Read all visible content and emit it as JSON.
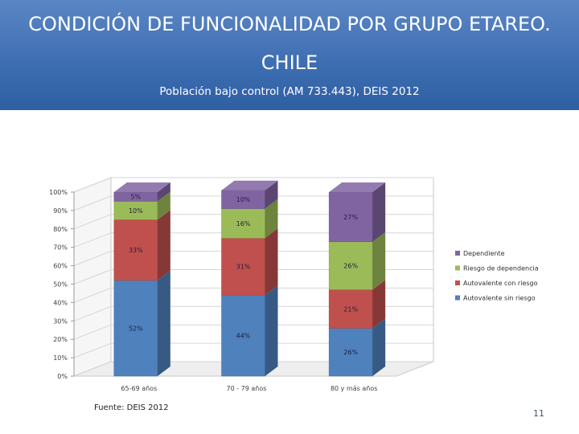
{
  "slide": {
    "title_line1": "CONDICIÓN DE FUNCIONALIDAD POR GRUPO ETAREO.",
    "title_line2": "CHILE",
    "subtitle": "Población bajo control (AM 733.443), DEIS 2012",
    "source": "Fuente: DEIS 2012",
    "page_number": "11"
  },
  "colors": {
    "banner": "#3f6fb3",
    "series": [
      "#4f81bd",
      "#c0504d",
      "#9bbb59",
      "#8064a2"
    ]
  },
  "chart_data": {
    "type": "bar",
    "stacked": true,
    "three_d": true,
    "categories": [
      "65-69 años",
      "70 - 79 años",
      "80 y más años"
    ],
    "series": [
      {
        "name": "Autovalente sin riesgo",
        "values": [
          52,
          44,
          26
        ],
        "labels": [
          "52%",
          "44%",
          "26%"
        ]
      },
      {
        "name": "Autovalente con riesgo",
        "values": [
          33,
          31,
          21
        ],
        "labels": [
          "33%",
          "31%",
          "21%"
        ]
      },
      {
        "name": "Riesgo de dependencia",
        "values": [
          10,
          16,
          26
        ],
        "labels": [
          "10%",
          "16%",
          "26%"
        ]
      },
      {
        "name": "Dependiente",
        "values": [
          5,
          10,
          27
        ],
        "labels": [
          "5%",
          "10%",
          "27%"
        ]
      }
    ],
    "y_ticks": [
      "0%",
      "10%",
      "20%",
      "30%",
      "40%",
      "50%",
      "60%",
      "70%",
      "80%",
      "90%",
      "100%"
    ],
    "ylim": [
      0,
      100
    ],
    "legend_position": "right",
    "legend_order": [
      "Dependiente",
      "Riesgo de dependencia",
      "Autovalente con riesgo",
      "Autovalente sin riesgo"
    ],
    "grid": true
  }
}
